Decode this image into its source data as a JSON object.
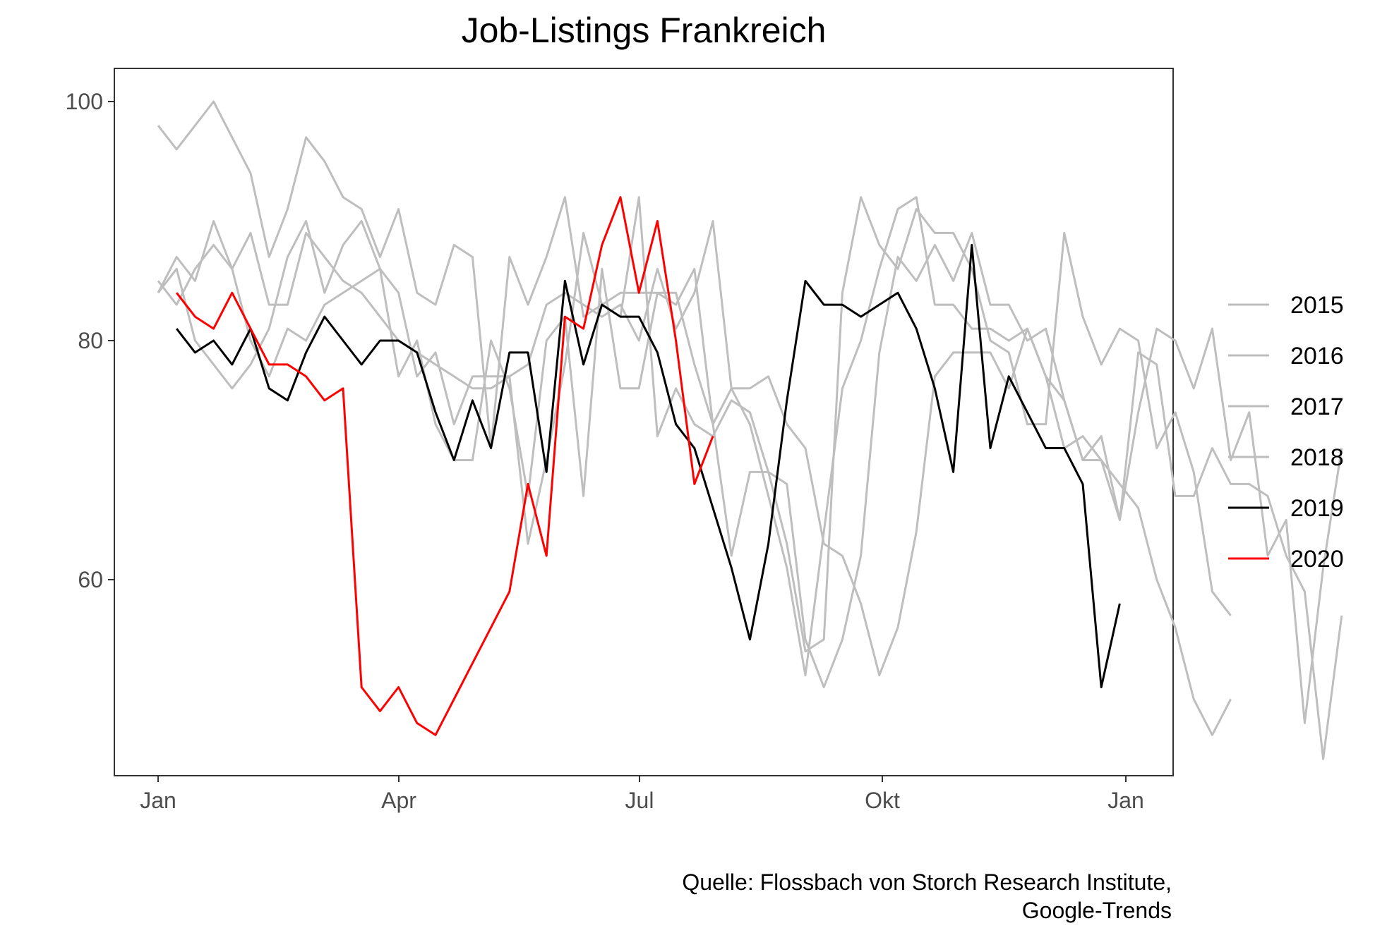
{
  "chart_data": {
    "type": "line",
    "title": "Job-Listings Frankreich",
    "xlabel": "",
    "ylabel": "",
    "x_ticks": [
      "Jan",
      "Apr",
      "Jul",
      "Okt",
      "Jan"
    ],
    "y_ticks": [
      60,
      80,
      100
    ],
    "ylim": [
      46.5,
      102.8
    ],
    "grid": false,
    "legend_position": "right",
    "caption": [
      "Quelle: Flossbach von Storch Research Institute,",
      "Google-Trends"
    ],
    "series": [
      {
        "name": "2015",
        "color": "#bebebe",
        "x_start_week": 1,
        "values": [
          84,
          87,
          85,
          90,
          86,
          89,
          83,
          83,
          89,
          87,
          85,
          84,
          82,
          80,
          79,
          78,
          77,
          76,
          76,
          77,
          78,
          83,
          84,
          83,
          82,
          83,
          80,
          86,
          81,
          84,
          90,
          76,
          76,
          77,
          73,
          71,
          63,
          62,
          58,
          52,
          56,
          64,
          77,
          79,
          79,
          79,
          76,
          81,
          77,
          75,
          70,
          70,
          68,
          66,
          60,
          56,
          50,
          47,
          50
        ]
      },
      {
        "name": "2016",
        "color": "#bebebe",
        "x_start_week": 1,
        "values": [
          85,
          83,
          86,
          88,
          86,
          80,
          77,
          81,
          80,
          83,
          84,
          85,
          86,
          84,
          77,
          79,
          73,
          77,
          77,
          77,
          63,
          70,
          78,
          89,
          83,
          84,
          84,
          84,
          83,
          86,
          73,
          62,
          69,
          69,
          68,
          55,
          51,
          55,
          62,
          79,
          87,
          85,
          88,
          85,
          89,
          83,
          83,
          80,
          81,
          75,
          70,
          72,
          65,
          79,
          78,
          67,
          67,
          71,
          68,
          68,
          67,
          62,
          59,
          45,
          57
        ]
      },
      {
        "name": "2017",
        "color": "#bebebe",
        "x_start_week": 1,
        "values": [
          98,
          96,
          98,
          100,
          97,
          94,
          87,
          91,
          97,
          95,
          92,
          91,
          87,
          91,
          84,
          83,
          88,
          87,
          71,
          87,
          83,
          87,
          92,
          82,
          83,
          82,
          92,
          72,
          76,
          73,
          72,
          75,
          74,
          69,
          63,
          54,
          55,
          84,
          92,
          88,
          86,
          91,
          89,
          89,
          86,
          80,
          79,
          73,
          73,
          89,
          82,
          78,
          81,
          80,
          71,
          74,
          69,
          59,
          57
        ]
      },
      {
        "name": "2018",
        "color": "#bebebe",
        "x_start_week": 1,
        "values": [
          84,
          86,
          80,
          78,
          76,
          78,
          81,
          87,
          90,
          84,
          88,
          90,
          86,
          77,
          80,
          73,
          70,
          70,
          80,
          76,
          67,
          80,
          82,
          67,
          86,
          76,
          76,
          84,
          84,
          78,
          73,
          76,
          73,
          67,
          61,
          52,
          64,
          76,
          80,
          86,
          91,
          92,
          83,
          83,
          81,
          81,
          80,
          81,
          77,
          71,
          72,
          70,
          65,
          74,
          81,
          80,
          76,
          81,
          70,
          74,
          62,
          65,
          48,
          61,
          71
        ]
      },
      {
        "name": "2019",
        "color": "#000000",
        "x_start_week": 2,
        "values": [
          81,
          79,
          80,
          78,
          81,
          76,
          75,
          79,
          82,
          80,
          78,
          80,
          80,
          79,
          74,
          70,
          75,
          71,
          79,
          79,
          69,
          85,
          78,
          83,
          82,
          82,
          79,
          73,
          71,
          66,
          61,
          55,
          63,
          75,
          85,
          83,
          83,
          82,
          83,
          84,
          81,
          76,
          69,
          88,
          71,
          77,
          74,
          71,
          71,
          68,
          51,
          58
        ]
      },
      {
        "name": "2020",
        "color": "#ff0000",
        "x_start_week": 2,
        "values": [
          84,
          82,
          81,
          84,
          81,
          78,
          78,
          77,
          75,
          76,
          51,
          49,
          51,
          48,
          47,
          50,
          53,
          56,
          59,
          68,
          62,
          82,
          81,
          88,
          92,
          84,
          90,
          80,
          68,
          72
        ]
      }
    ]
  }
}
